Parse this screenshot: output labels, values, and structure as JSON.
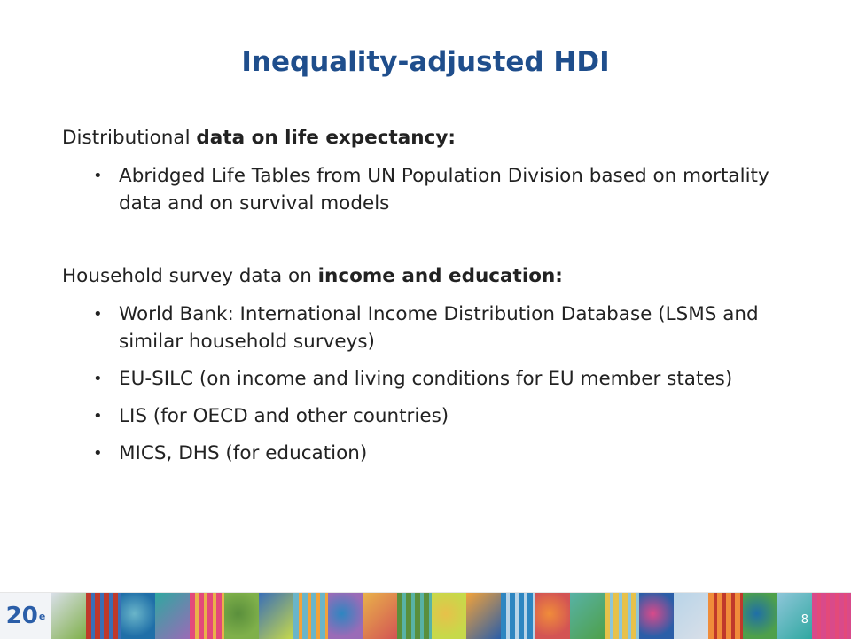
{
  "slide": {
    "title": "Inequality-adjusted HDI",
    "section1": {
      "lead": "Distributional ",
      "bold": "data on life expectancy:",
      "bullets": [
        "Abridged Life Tables from UN Population Division based on mortality data and on survival models"
      ]
    },
    "section2": {
      "lead": "Household survey data on ",
      "bold": "income and education:",
      "bullets": [
        "World Bank: International Income Distribution Database (LSMS and similar household surveys)",
        "EU-SILC (on income and living conditions for EU member states)",
        "LIS (for OECD and other countries)",
        "MICS, DHS (for education)"
      ]
    },
    "bullet_glyph": "•",
    "page_number": "8"
  },
  "footer": {
    "logo_number": "20",
    "logo_suffix": "e",
    "tile_colors": [
      "#d9dfe8",
      "#c0392b",
      "#1f6fa8",
      "#2fa8a0",
      "#e34a7a",
      "#7fb04a",
      "#3a6fb7",
      "#6ab5c9",
      "#9a6bb7",
      "#e9b24a",
      "#5a8f3c",
      "#c7d94a",
      "#f2a23a",
      "#2e86c1",
      "#d35454",
      "#58b2a5",
      "#e7c14a",
      "#2b5ea8",
      "#b8d4e8",
      "#f08c3a",
      "#4ea04a",
      "#8ec6d9",
      "#d94a8a"
    ]
  }
}
